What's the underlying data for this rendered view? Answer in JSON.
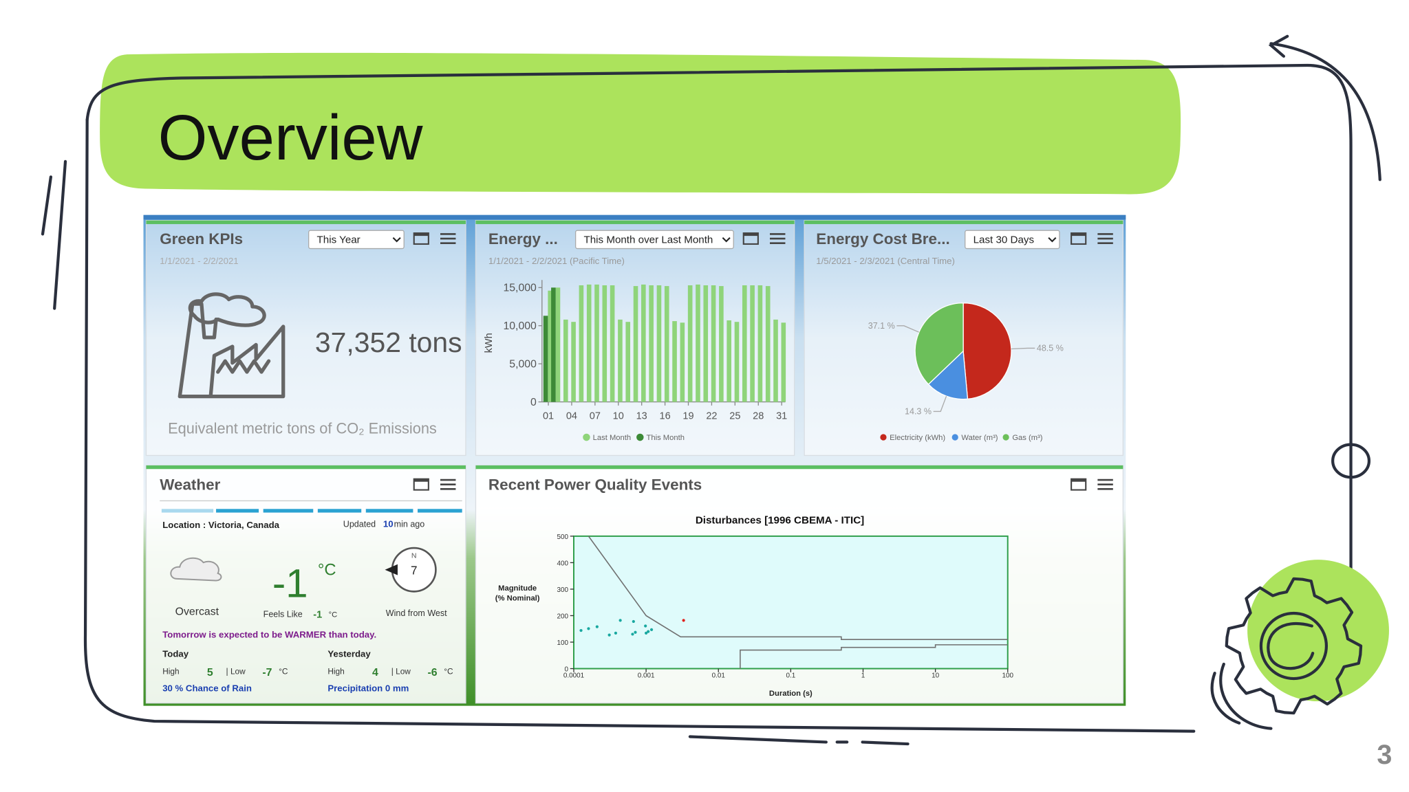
{
  "slide": {
    "title": "Overview",
    "page_number": "3"
  },
  "green_kpis": {
    "title": "Green KPIs",
    "range": "This Year",
    "dates": "1/1/2021 - 2/2/2021",
    "value": "37,352 tons",
    "caption": "Equivalent metric tons of CO₂ Emissions"
  },
  "energy": {
    "title": "Energy ...",
    "range": "This Month over Last Month",
    "dates": "1/1/2021 - 2/2/2021 (Pacific Time)"
  },
  "energy_cost": {
    "title": "Energy Cost Bre...",
    "range": "Last 30 Days",
    "dates": "1/5/2021 - 2/3/2021 (Central Time)"
  },
  "weather": {
    "title": "Weather",
    "location": "Location : Victoria, Canada",
    "updated": "Updated",
    "updated_minutes": 10,
    "updated_unit": "min ago",
    "condition": "Overcast",
    "temperature": -1,
    "temperature_unit": "°C",
    "feels_like_label": "Feels Like",
    "feels_like": -1,
    "feels_like_unit": "°C",
    "wind_direction": "N",
    "wind_speed": 7,
    "wind_text": "Wind from West",
    "forecast": "Tomorrow is expected to be WARMER than today.",
    "today": {
      "label": "Today",
      "high_label": "High",
      "high": 5,
      "low_label": "| Low",
      "low": -7,
      "unit": "°C",
      "note": "30 % Chance of Rain"
    },
    "yesterday": {
      "label": "Yesterday",
      "high_label": "High",
      "high": 4,
      "low_label": "| Low",
      "low": -6,
      "unit": "°C",
      "note": "Precipitation 0 mm"
    }
  },
  "power_quality": {
    "title": "Recent Power Quality Events"
  },
  "chart_data": [
    {
      "type": "bar",
      "ylabel": "kWh",
      "categories": [
        "01",
        null,
        null,
        "04",
        null,
        null,
        "07",
        null,
        null,
        "10",
        null,
        null,
        "13",
        null,
        null,
        "16",
        null,
        null,
        "19",
        null,
        null,
        "22",
        null,
        null,
        "25",
        null,
        null,
        "28",
        null,
        null,
        "31"
      ],
      "series": [
        {
          "name": "Last Month",
          "color": "#8fd47a",
          "values": [
            14600,
            15000,
            10800,
            10500,
            15300,
            15400,
            15400,
            15300,
            15300,
            10800,
            10500,
            15200,
            15400,
            15300,
            15300,
            15200,
            10600,
            10400,
            15300,
            15400,
            15300,
            15300,
            15200,
            10700,
            10500,
            15300,
            15300,
            15300,
            15200,
            10800,
            10400
          ]
        },
        {
          "name": "This Month",
          "color": "#3d8a37",
          "values": [
            11300,
            15000,
            null,
            null,
            null,
            null,
            null,
            null,
            null,
            null,
            null,
            null,
            null,
            null,
            null,
            null,
            null,
            null,
            null,
            null,
            null,
            null,
            null,
            null,
            null,
            null,
            null,
            null,
            null,
            null,
            null
          ]
        }
      ],
      "ylim": [
        0,
        16000
      ],
      "yticks": [
        0,
        {
          "value": 5000,
          "label": "5,000"
        },
        {
          "value": 10000,
          "label": "10,000"
        },
        {
          "value": 15000,
          "label": "15,000"
        }
      ]
    },
    {
      "type": "pie",
      "categories": [
        "Electricity (kWh)",
        "Water (m³)",
        "Gas (m³)"
      ],
      "values": [
        48.5,
        14.3,
        37.1
      ],
      "value_labels": [
        "48.5 %",
        "14.3 %",
        "37.1 %"
      ],
      "colors": [
        "#c4281c",
        "#4a8fe0",
        "#6cbf5a"
      ]
    },
    {
      "type": "line",
      "title": "Disturbances [1996 CBEMA - ITIC]",
      "xlabel": "Duration (s)",
      "ylabel": [
        "Magnitude",
        "(% Nominal)"
      ],
      "xlog": true,
      "xlim": [
        0.0001,
        100
      ],
      "xticks": [
        0.0001,
        0.001,
        0.01,
        0.1,
        1,
        10,
        100
      ],
      "ylim": [
        0,
        500
      ],
      "yticks": [
        0,
        100,
        200,
        300,
        400,
        500
      ],
      "series": [
        {
          "color": "#707070",
          "x": [
            0.00016,
            0.001,
            0.003,
            0.5,
            0.5,
            100
          ],
          "values": [
            500,
            200,
            120,
            120,
            110,
            110
          ]
        },
        {
          "color": "#707070",
          "x": [
            0.02,
            0.02,
            0.5,
            0.5,
            10,
            10,
            100
          ],
          "values": [
            0,
            70,
            70,
            80,
            80,
            90,
            90
          ]
        },
        {
          "color": "#19a8a0",
          "marker": true,
          "x": [
            0.000126,
            0.00016,
            0.00021,
            0.00031,
            0.00038,
            0.00044,
            0.00065,
            0.00067,
            0.00071,
            0.001,
            0.00098,
            0.00107,
            0.00119
          ],
          "values": [
            144,
            151,
            158,
            127,
            134,
            182,
            130,
            178,
            137,
            134,
            161,
            140,
            147
          ]
        },
        {
          "color": "#e0201c",
          "marker": true,
          "x": [
            0.0033
          ],
          "values": [
            182
          ]
        }
      ]
    }
  ]
}
